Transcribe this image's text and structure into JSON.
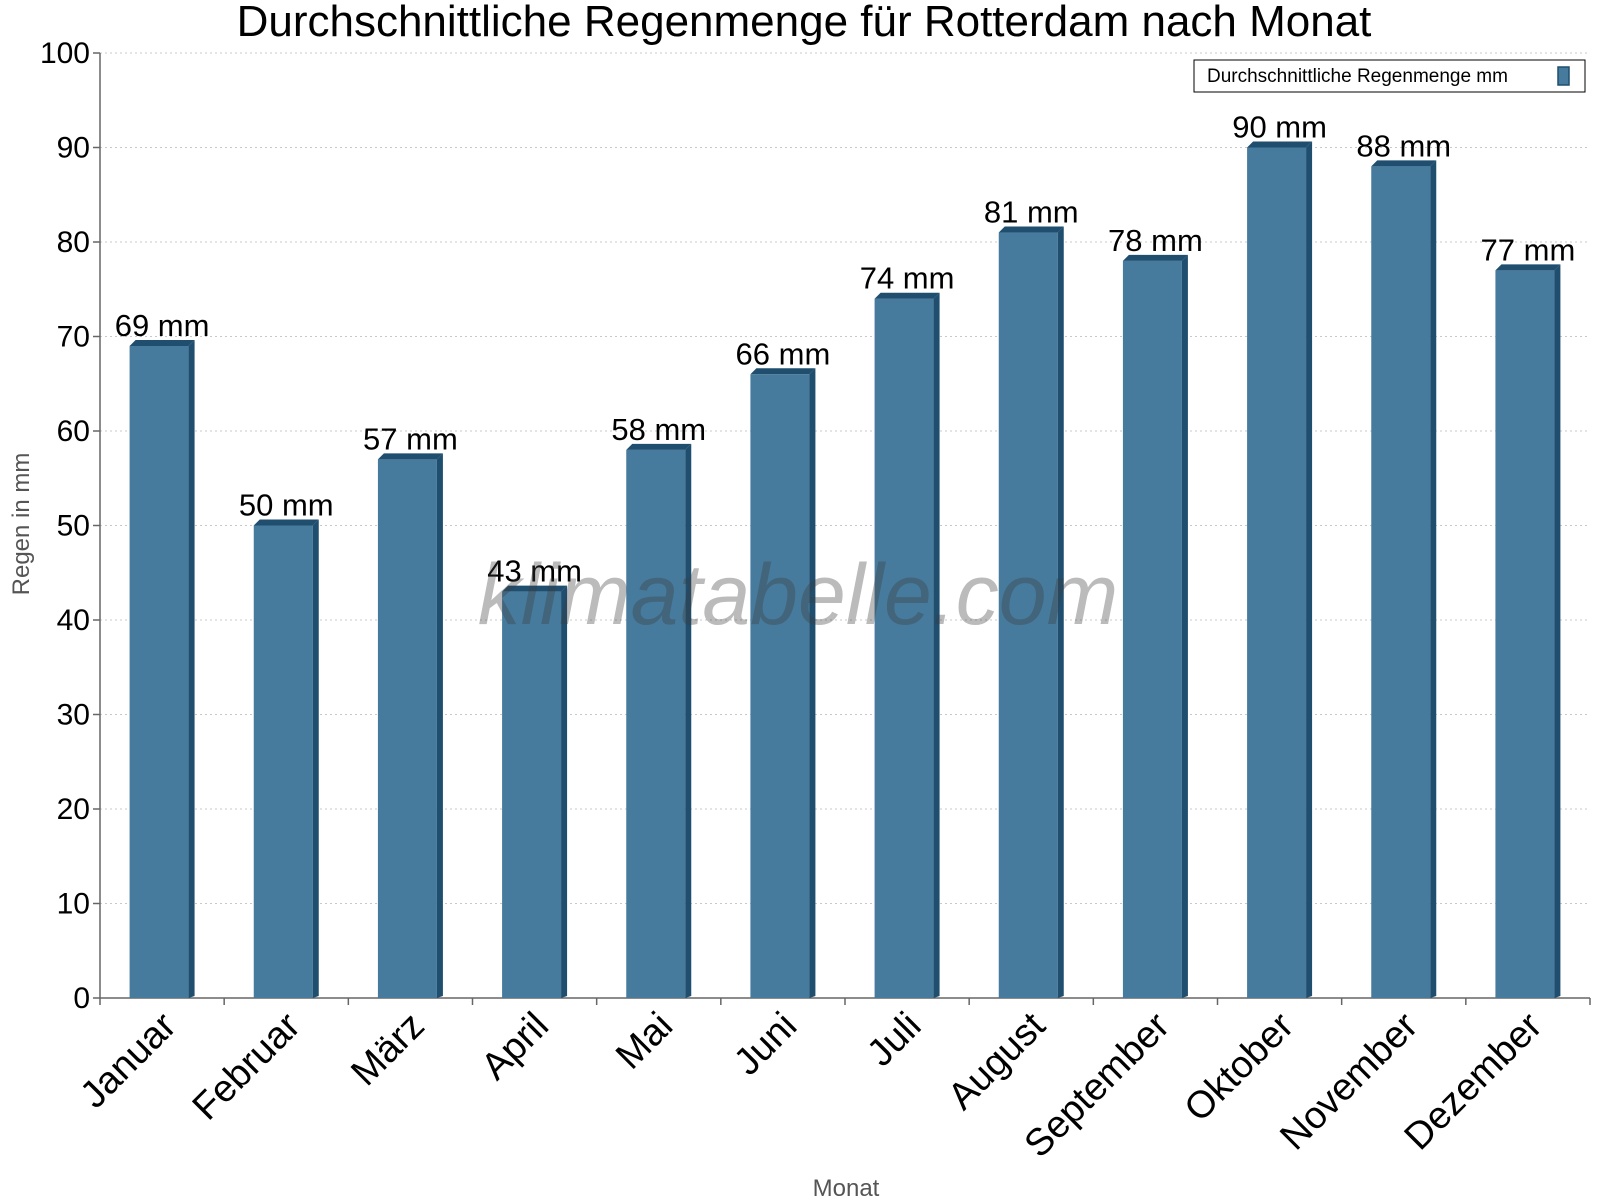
{
  "chart_data": {
    "type": "bar",
    "title": "Durchschnittliche Regenmenge für Rotterdam nach Monat",
    "xlabel": "Monat",
    "ylabel": "Regen in mm",
    "categories": [
      "Januar",
      "Februar",
      "März",
      "April",
      "Mai",
      "Juni",
      "Juli",
      "August",
      "September",
      "Oktober",
      "November",
      "Dezember"
    ],
    "series": [
      {
        "name": "Durchschnittliche Regenmenge mm",
        "values": [
          69,
          50,
          57,
          43,
          58,
          66,
          74,
          81,
          78,
          90,
          88,
          77
        ],
        "data_labels": [
          "69 mm",
          "50 mm",
          "57 mm",
          "43 mm",
          "58 mm",
          "66 mm",
          "74 mm",
          "81 mm",
          "78 mm",
          "90 mm",
          "88 mm",
          "77 mm"
        ]
      }
    ],
    "ylim": [
      0,
      100
    ],
    "yticks": [
      "0",
      "10",
      "20",
      "30",
      "40",
      "50",
      "60",
      "70",
      "80",
      "90",
      "100"
    ],
    "grid": true,
    "legend_position": "top-right",
    "colors": {
      "bar_front": "#467b9d",
      "bar_side": "#1f4e6f",
      "bar_top": "#1f4e6f"
    }
  },
  "watermark": "klimatabelle.com"
}
